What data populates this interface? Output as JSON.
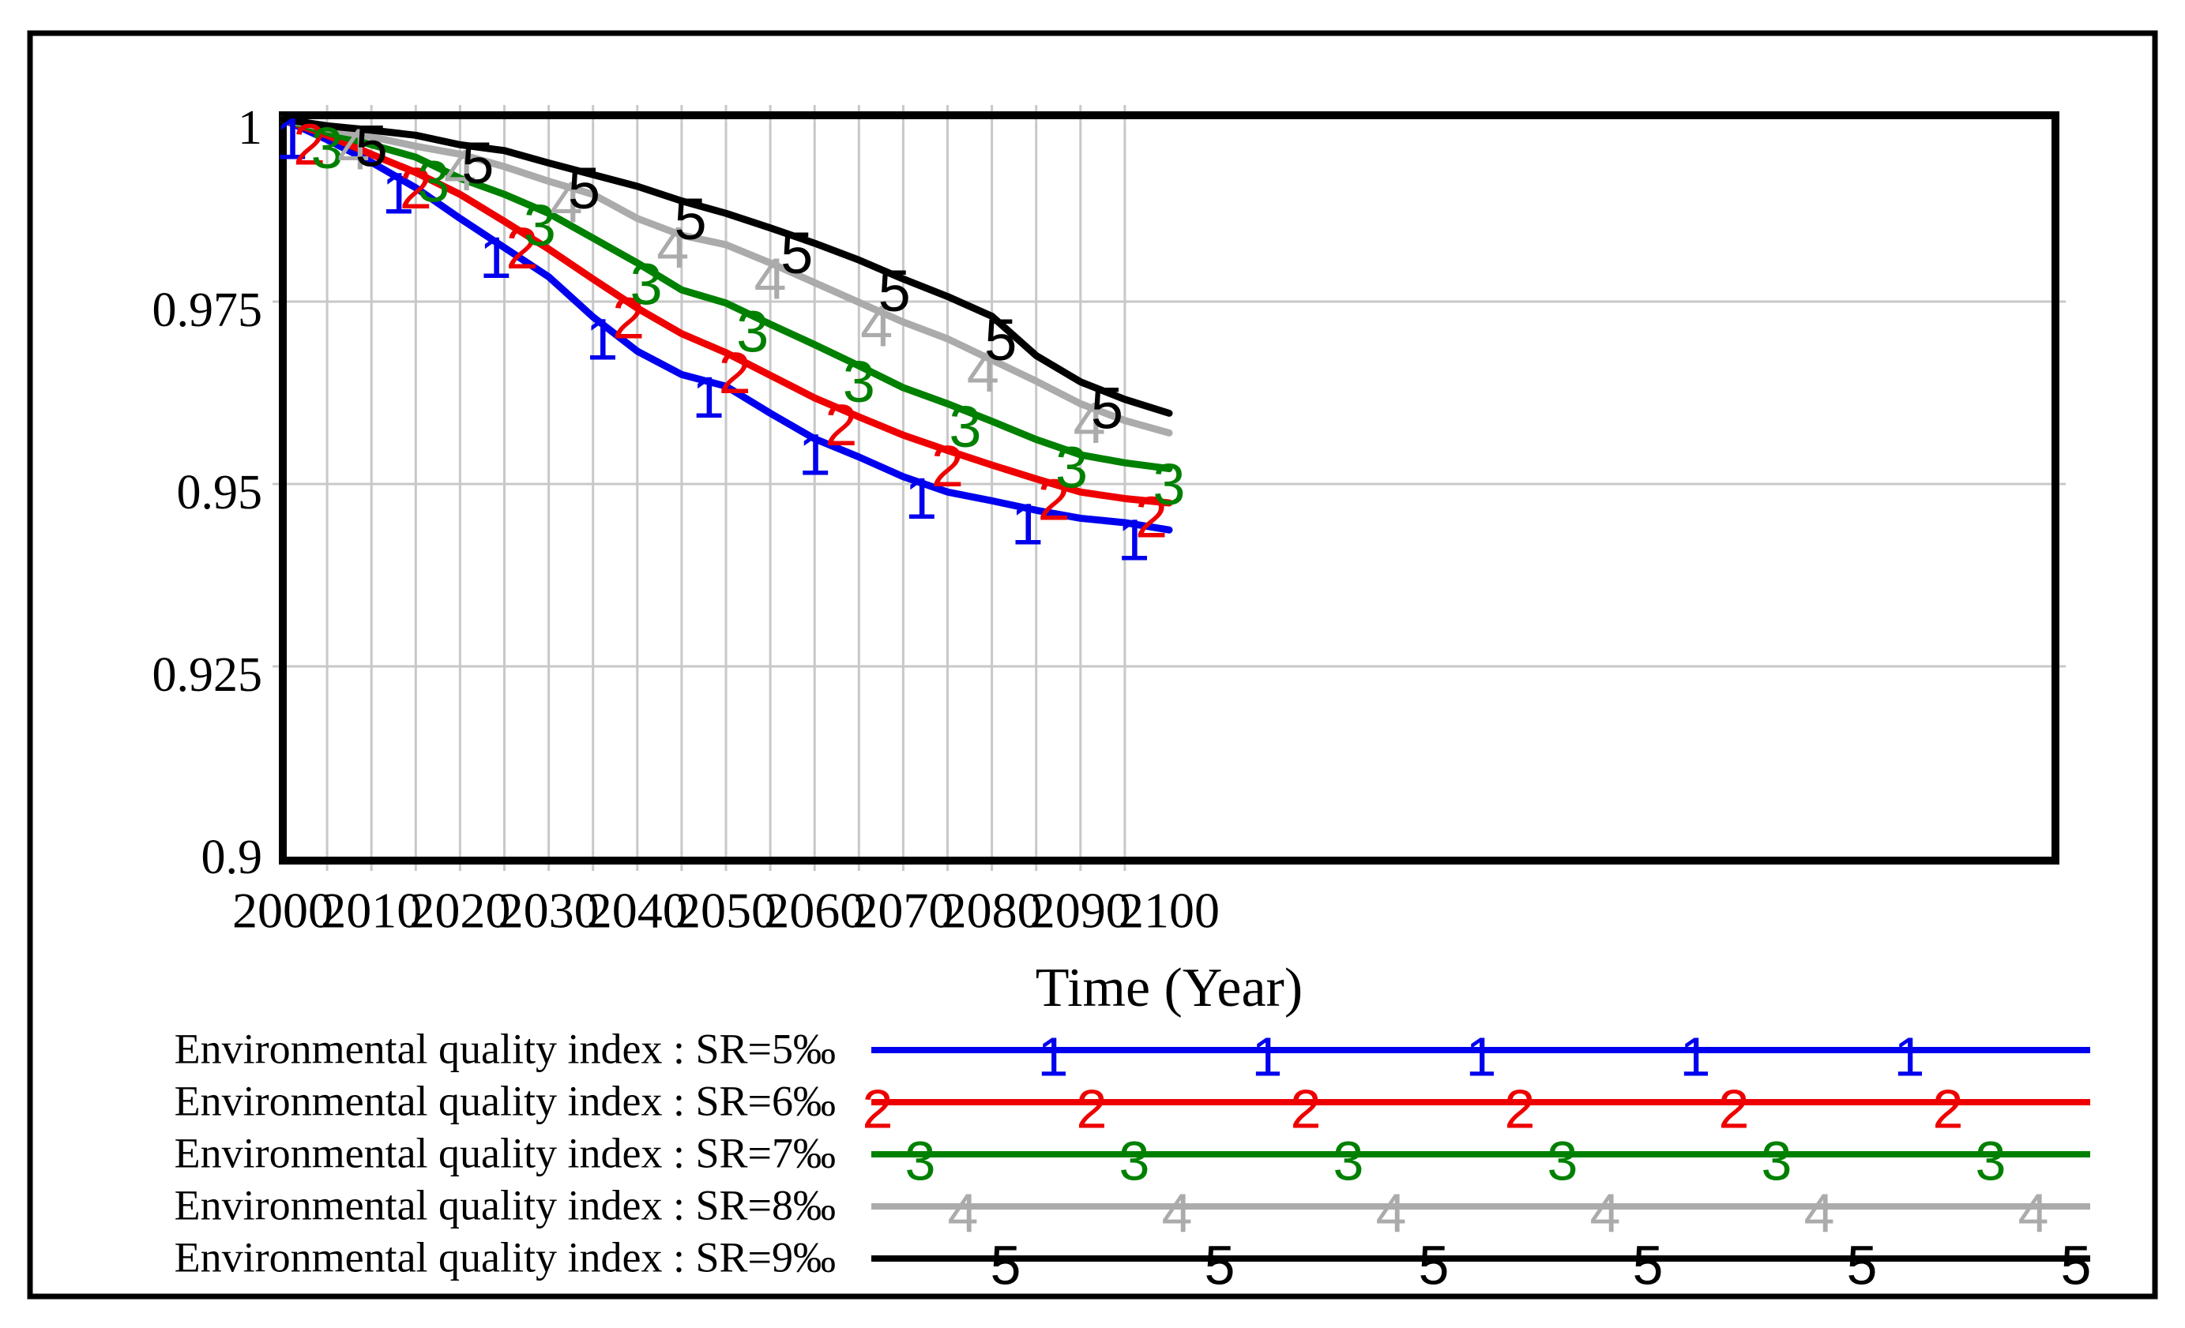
{
  "window": {
    "background": "#ffffff",
    "frame_color": "#000000"
  },
  "chart_data": {
    "type": "line",
    "title": "",
    "xlabel": "Time (Year)",
    "ylabel": "",
    "x_range": [
      2000,
      2100
    ],
    "x_ticks": [
      2000,
      2010,
      2020,
      2030,
      2040,
      2050,
      2060,
      2070,
      2080,
      2090,
      2100
    ],
    "x_grid_interval_years": 5,
    "ylim": [
      0.9,
      1.0
    ],
    "y_ticks": [
      {
        "label": "1",
        "value": 1.0
      },
      {
        "label": "0.975",
        "value": 0.975
      },
      {
        "label": "0.95",
        "value": 0.95
      },
      {
        "label": "0.925",
        "value": 0.925
      },
      {
        "label": "0.9",
        "value": 0.9
      }
    ],
    "grid_color": "#c8c8c8",
    "legend_position": "bottom-left",
    "x": [
      2000,
      2005,
      2010,
      2015,
      2020,
      2025,
      2030,
      2035,
      2040,
      2045,
      2050,
      2055,
      2060,
      2065,
      2070,
      2075,
      2080,
      2085,
      2090,
      2095,
      2100
    ],
    "series": [
      {
        "name": "Environmental quality index : SR=5‰",
        "marker": "1",
        "color": "#0000ee",
        "values": [
          1.0,
          0.9972,
          0.9941,
          0.9906,
          0.9864,
          0.9824,
          0.9784,
          0.9729,
          0.9682,
          0.965,
          0.9634,
          0.9597,
          0.9562,
          0.9537,
          0.951,
          0.9489,
          0.9477,
          0.9464,
          0.9453,
          0.9447,
          0.9437
        ],
        "marker_years": [
          2001,
          2013,
          2024,
          2036,
          2048,
          2060,
          2072,
          2084,
          2096
        ]
      },
      {
        "name": "Environmental quality index : SR=6‰",
        "marker": "2",
        "color": "#ee0000",
        "values": [
          1.0,
          0.9978,
          0.9952,
          0.9927,
          0.9897,
          0.986,
          0.9822,
          0.9781,
          0.9741,
          0.9706,
          0.968,
          0.9649,
          0.9618,
          0.9592,
          0.9567,
          0.9546,
          0.9526,
          0.9507,
          0.9489,
          0.948,
          0.9474
        ],
        "marker_years": [
          2003,
          2015,
          2027,
          2039,
          2051,
          2063,
          2075,
          2087,
          2098
        ]
      },
      {
        "name": "Environmental quality index : SR=7‰",
        "marker": "3",
        "color": "#008000",
        "values": [
          1.0,
          0.9982,
          0.9965,
          0.9948,
          0.9919,
          0.9897,
          0.9871,
          0.9837,
          0.9803,
          0.9766,
          0.9748,
          0.9719,
          0.9691,
          0.9662,
          0.9632,
          0.961,
          0.9586,
          0.9561,
          0.954,
          0.9529,
          0.9521
        ],
        "marker_years": [
          2005,
          2017,
          2029,
          2041,
          2053,
          2065,
          2077,
          2089,
          2100
        ]
      },
      {
        "name": "Environmental quality index : SR=8‰",
        "marker": "4",
        "color": "#ababab",
        "values": [
          1.0,
          0.9987,
          0.9976,
          0.9963,
          0.9952,
          0.9935,
          0.9915,
          0.9897,
          0.9864,
          0.9841,
          0.9828,
          0.9803,
          0.9776,
          0.9749,
          0.9722,
          0.9699,
          0.967,
          0.9641,
          0.961,
          0.9587,
          0.957
        ],
        "marker_years": [
          2008,
          2020,
          2032,
          2044,
          2055,
          2067,
          2079,
          2091
        ]
      },
      {
        "name": "Environmental quality index : SR=9‰",
        "marker": "5",
        "color": "#000000",
        "values": [
          1.0,
          0.9991,
          0.9985,
          0.9978,
          0.9965,
          0.9957,
          0.994,
          0.9924,
          0.9908,
          0.9888,
          0.9871,
          0.9851,
          0.983,
          0.9807,
          0.9781,
          0.9757,
          0.973,
          0.9676,
          0.964,
          0.9616,
          0.9597
        ],
        "marker_years": [
          2010,
          2022,
          2034,
          2046,
          2058,
          2069,
          2081,
          2093
        ]
      }
    ]
  }
}
